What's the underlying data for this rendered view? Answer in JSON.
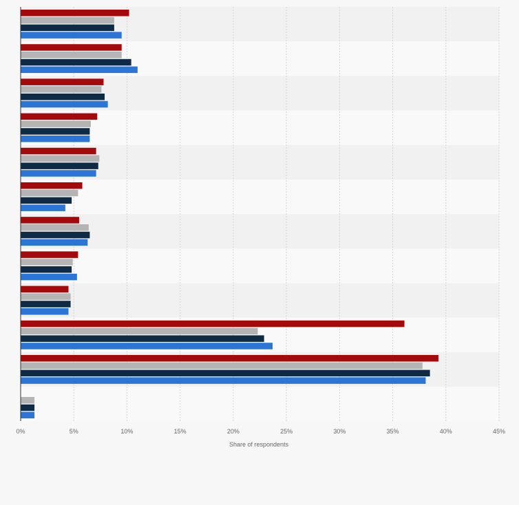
{
  "chart_data": {
    "type": "bar",
    "orientation": "horizontal",
    "xlabel": "Share of respondents",
    "ylabel": "",
    "xlim": [
      0,
      45
    ],
    "x_ticks": [
      "0%",
      "5%",
      "10%",
      "15%",
      "20%",
      "25%",
      "30%",
      "35%",
      "40%",
      "45%"
    ],
    "grid": "vertical dashed",
    "legend": "none",
    "categories": [
      "",
      "",
      "",
      "",
      "",
      "",
      "",
      "",
      "",
      "",
      "",
      ""
    ],
    "series": [
      {
        "color": "#a4090c",
        "values": [
          10.2,
          9.5,
          7.8,
          7.2,
          7.1,
          5.8,
          5.5,
          5.4,
          4.5,
          36.1,
          39.3,
          null
        ]
      },
      {
        "color": "#b4b4b4",
        "values": [
          8.8,
          9.5,
          7.6,
          6.6,
          7.4,
          5.4,
          6.4,
          4.9,
          4.7,
          22.3,
          37.8,
          1.3
        ]
      },
      {
        "color": "#0e2a45",
        "values": [
          8.8,
          10.4,
          7.9,
          6.5,
          7.3,
          4.8,
          6.5,
          4.8,
          4.7,
          22.9,
          38.5,
          1.3
        ]
      },
      {
        "color": "#2a75d6",
        "values": [
          9.5,
          11.0,
          8.2,
          6.5,
          7.1,
          4.2,
          6.3,
          5.3,
          4.5,
          23.7,
          38.1,
          1.3
        ]
      }
    ]
  }
}
